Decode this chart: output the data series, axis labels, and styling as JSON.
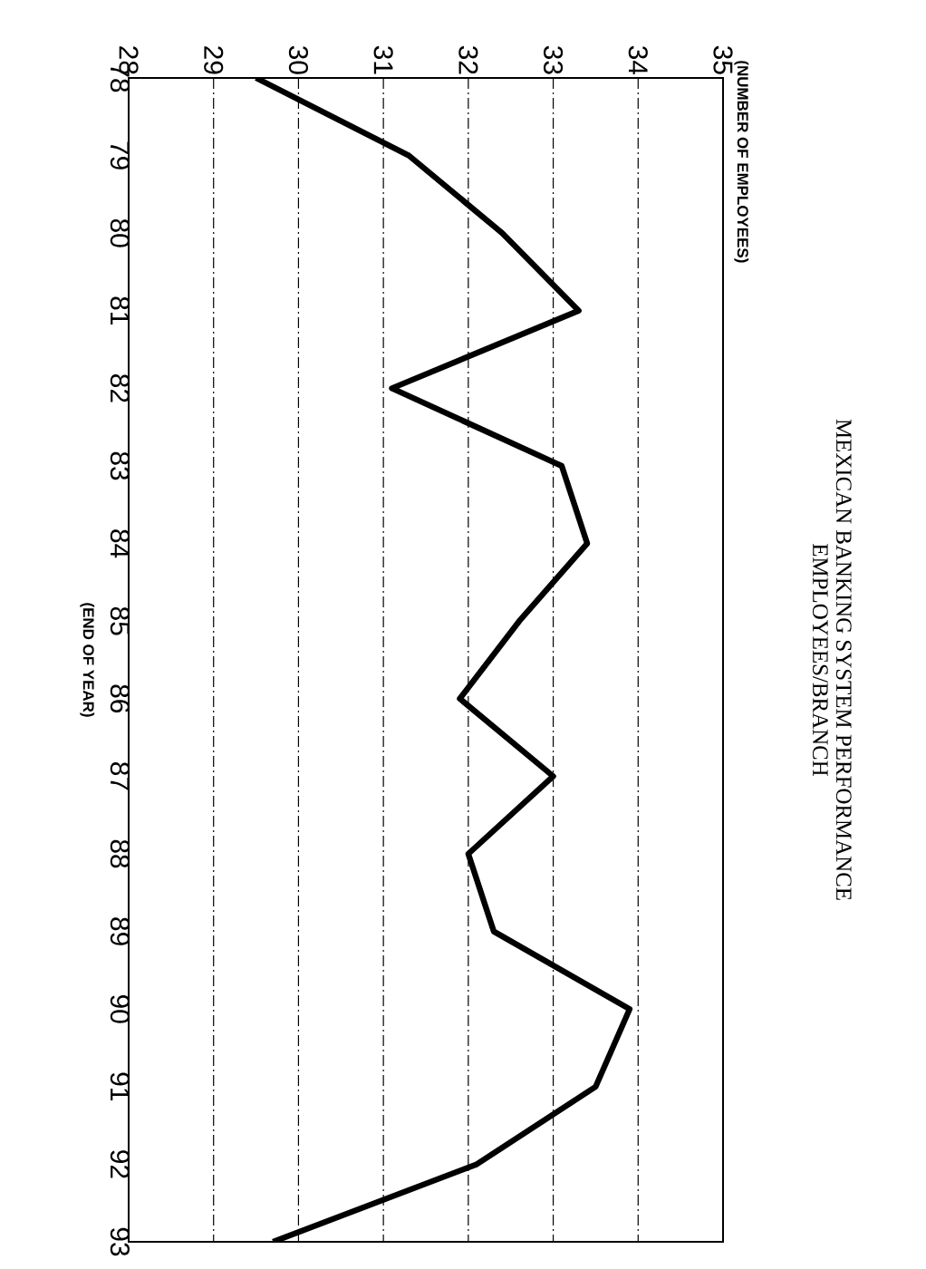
{
  "chart_data": {
    "type": "line",
    "orientation": "horizontal",
    "title": "MEXICAN BANKING SYSTEM PERFORMANCE",
    "subtitle": "EMPLOYEES/BRANCH",
    "annotations": [
      "(NUMBER OF EMPLOYEES)"
    ],
    "ylabel": "(END OF YEAR)",
    "categories": [
      "78",
      "79",
      "80",
      "81",
      "82",
      "83",
      "84",
      "85",
      "86",
      "87",
      "88",
      "89",
      "90",
      "91",
      "92",
      "93"
    ],
    "series": [
      {
        "color": "#000000",
        "values": [
          29.5,
          31.3,
          32.4,
          33.3,
          31.1,
          33.1,
          33.4,
          32.6,
          31.9,
          33.0,
          32.0,
          32.3,
          33.9,
          33.5,
          32.1,
          29.7
        ]
      }
    ],
    "xlim": [
      28,
      35
    ],
    "xticks": [
      28,
      29,
      30,
      31,
      32,
      33,
      34,
      35
    ],
    "grid": "x"
  }
}
